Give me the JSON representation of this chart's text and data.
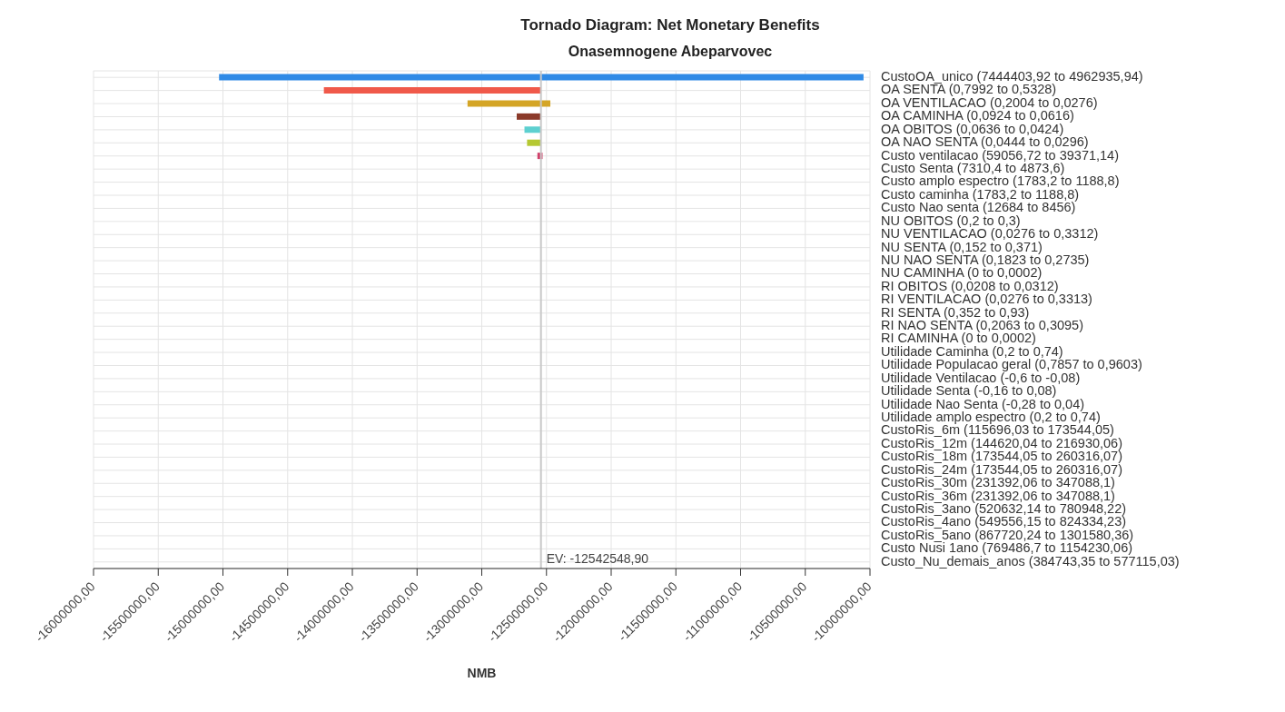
{
  "chart_data": {
    "type": "bar",
    "orientation": "horizontal",
    "title": "Tornado Diagram: Net Monetary Benefits",
    "subtitle": "Onasemnogene Abeparvovec",
    "xlabel": "NMB",
    "categories": [
      "CustoOA_unico (7444403,92 to 4962935,94)",
      "OA SENTA (0,7992 to 0,5328)",
      "OA VENTILACAO (0,2004 to 0,0276)",
      "OA CAMINHA (0,0924 to 0,0616)",
      "OA OBITOS (0,0636 to 0,0424)",
      "OA NAO SENTA (0,0444 to 0,0296)",
      "Custo ventilacao (59056,72 to 39371,14)",
      "Custo Senta (7310,4 to 4873,6)",
      "Custo amplo espectro (1783,2 to 1188,8)",
      "Custo caminha (1783,2 to 1188,8)",
      "Custo Nao senta (12684 to 8456)",
      "NU OBITOS (0,2 to 0,3)",
      "NU VENTILACAO (0,0276 to 0,3312)",
      "NU SENTA (0,152 to 0,371)",
      "NU NAO SENTA (0,1823 to 0,2735)",
      "NU CAMINHA (0 to 0,0002)",
      "RI OBITOS (0,0208 to 0,0312)",
      "RI VENTILACAO (0,0276 to 0,3313)",
      "RI SENTA (0,352 to 0,93)",
      "RI NAO SENTA (0,2063 to 0,3095)",
      "RI CAMINHA (0 to 0,0002)",
      "Utilidade Caminha (0,2 to 0,74)",
      "Utilidade Populacao geral (0,7857 to 0,9603)",
      "Utilidade Ventilacao (-0,6 to -0,08)",
      "Utilidade Senta (-0,16 to 0,08)",
      "Utilidade Nao Senta (-0,28 to 0,04)",
      "Utilidade amplo espectro (0,2 to 0,74)",
      "CustoRis_6m (115696,03 to 173544,05)",
      "CustoRis_12m (144620,04 to 216930,06)",
      "CustoRis_18m (173544,05 to 260316,07)",
      "CustoRis_24m (173544,05 to 260316,07)",
      "CustoRis_30m (231392,06 to 347088,1)",
      "CustoRis_36m (231392,06 to 347088,1)",
      "CustoRis_3ano (520632,14 to 780948,22)",
      "CustoRis_4ano (549556,15 to 824334,23)",
      "CustoRis_5ano (867720,24 to 1301580,36)",
      "Custo Nusi 1ano (769486,7 to 1154230,06)",
      "Custo_Nu_demais_anos (384743,35 to 577115,03)"
    ],
    "base": [
      -15030000,
      -14220000,
      -13110000,
      -12730000,
      -12670000,
      -12650000,
      -12570000,
      null,
      null,
      null,
      null,
      null,
      null,
      null,
      null,
      null,
      null,
      null,
      null,
      null,
      null,
      null,
      null,
      null,
      null,
      null,
      null,
      null,
      null,
      null,
      null,
      null,
      null,
      null,
      null,
      null,
      null,
      null
    ],
    "values": [
      4980000,
      1680000,
      640000,
      190000,
      130000,
      110000,
      40000,
      null,
      null,
      null,
      null,
      null,
      null,
      null,
      null,
      null,
      null,
      null,
      null,
      null,
      null,
      null,
      null,
      null,
      null,
      null,
      null,
      null,
      null,
      null,
      null,
      null,
      null,
      null,
      null,
      null,
      null,
      null
    ],
    "colors": [
      "#2f8ae6",
      "#f0594a",
      "#d4a526",
      "#8b3a2a",
      "#5dd0d0",
      "#b5c832",
      "#d0406a",
      null,
      null,
      null,
      null,
      null,
      null,
      null,
      null,
      null,
      null,
      null,
      null,
      null,
      null,
      null,
      null,
      null,
      null,
      null,
      null,
      null,
      null,
      null,
      null,
      null,
      null,
      null,
      null,
      null,
      null,
      null
    ],
    "xlim": [
      -16000000,
      -10000000
    ],
    "xticks": [
      {
        "value": -16000000,
        "label": "-16000000,00"
      },
      {
        "value": -15500000,
        "label": "-15500000,00"
      },
      {
        "value": -15000000,
        "label": "-15000000,00"
      },
      {
        "value": -14500000,
        "label": "-14500000,00"
      },
      {
        "value": -14000000,
        "label": "-14000000,00"
      },
      {
        "value": -13500000,
        "label": "-13500000,00"
      },
      {
        "value": -13000000,
        "label": "-13000000,00"
      },
      {
        "value": -12500000,
        "label": "-12500000,00"
      },
      {
        "value": -12000000,
        "label": "-12000000,00"
      },
      {
        "value": -11500000,
        "label": "-11500000,00"
      },
      {
        "value": -11000000,
        "label": "-11000000,00"
      },
      {
        "value": -10500000,
        "label": "-10500000,00"
      },
      {
        "value": -10000000,
        "label": "-10000000,00"
      }
    ],
    "grid": true,
    "ref_lines": [
      {
        "axis": "x",
        "value": -12542548.9,
        "label": "EV: -12542548,90",
        "color": "#c8c8c8"
      }
    ]
  }
}
